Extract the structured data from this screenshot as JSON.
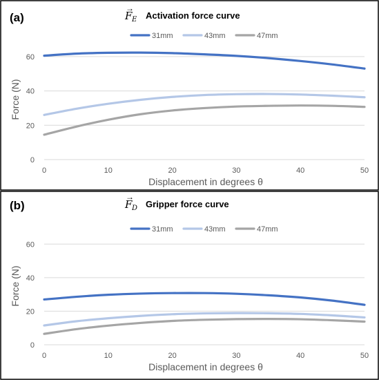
{
  "panels": [
    {
      "letter": "(a)",
      "title_symbol": "F",
      "title_subscript": "E",
      "title_text": "Activation force curve"
    },
    {
      "letter": "(b)",
      "title_symbol": "F",
      "title_subscript": "D",
      "title_text": "Gripper force curve"
    }
  ],
  "chart_data": [
    {
      "type": "line",
      "title": "Activation force curve",
      "xlabel": "Displacement in degrees θ",
      "ylabel": "Force (N)",
      "xlim": [
        0,
        50
      ],
      "ylim": [
        0,
        70
      ],
      "xticks": [
        0,
        10,
        20,
        30,
        40,
        50
      ],
      "yticks": [
        0,
        20,
        40,
        60
      ],
      "grid": true,
      "legend_position": "top-center",
      "x": [
        0,
        5,
        10,
        15,
        20,
        25,
        30,
        35,
        40,
        45,
        50
      ],
      "series": [
        {
          "name": "31mm",
          "color": "#4472c4",
          "values": [
            60.5,
            61.7,
            62.2,
            62.3,
            62.0,
            61.3,
            60.4,
            59.1,
            57.4,
            55.4,
            53.0
          ]
        },
        {
          "name": "43mm",
          "color": "#b4c7e7",
          "values": [
            26.0,
            29.6,
            32.5,
            34.8,
            36.5,
            37.6,
            38.1,
            38.2,
            37.9,
            37.2,
            36.3
          ]
        },
        {
          "name": "47mm",
          "color": "#a5a5a5",
          "values": [
            14.5,
            19.2,
            23.2,
            26.4,
            28.6,
            30.0,
            30.9,
            31.3,
            31.5,
            31.3,
            30.7
          ]
        }
      ]
    },
    {
      "type": "line",
      "title": "Gripper force curve",
      "xlabel": "Displacement in degrees θ",
      "ylabel": "Force (N)",
      "xlim": [
        0,
        50
      ],
      "ylim": [
        0,
        70
      ],
      "xticks": [
        0,
        10,
        20,
        30,
        40,
        50
      ],
      "yticks": [
        0,
        20,
        40,
        60
      ],
      "grid": true,
      "legend_position": "top-center",
      "x": [
        0,
        5,
        10,
        15,
        20,
        25,
        30,
        35,
        40,
        45,
        50
      ],
      "series": [
        {
          "name": "31mm",
          "color": "#4472c4",
          "values": [
            27.0,
            28.6,
            29.8,
            30.5,
            30.8,
            30.8,
            30.4,
            29.5,
            28.2,
            26.3,
            23.8
          ]
        },
        {
          "name": "43mm",
          "color": "#b4c7e7",
          "values": [
            11.5,
            14.0,
            15.8,
            17.2,
            18.2,
            18.7,
            18.9,
            18.8,
            18.4,
            17.5,
            16.3
          ]
        },
        {
          "name": "47mm",
          "color": "#a5a5a5",
          "values": [
            6.5,
            9.3,
            11.4,
            13.0,
            14.2,
            14.9,
            15.3,
            15.4,
            15.2,
            14.6,
            13.8
          ]
        }
      ]
    }
  ]
}
